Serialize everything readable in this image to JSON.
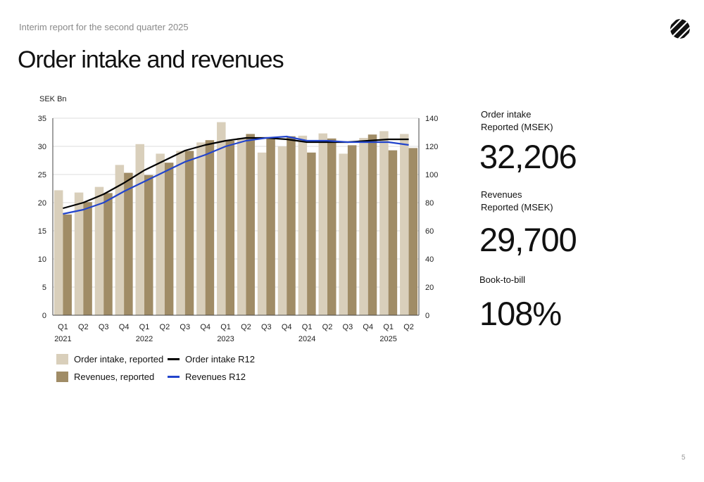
{
  "header": {
    "report_name": "Interim report for the second quarter 2025",
    "title": "Order intake and revenues"
  },
  "colors": {
    "order_intake_bar": "#d9cfbb",
    "revenues_bar": "#a08c66",
    "order_intake_r12": "#000000",
    "revenues_r12": "#2244cc"
  },
  "chart_data": {
    "type": "bar",
    "unit_label": "SEK Bn",
    "categories": [
      "Q1",
      "Q2",
      "Q3",
      "Q4",
      "Q1",
      "Q2",
      "Q3",
      "Q4",
      "Q1",
      "Q2",
      "Q3",
      "Q4",
      "Q1",
      "Q2",
      "Q3",
      "Q4",
      "Q1",
      "Q2"
    ],
    "year_labels": [
      {
        "index": 0,
        "label": "2021"
      },
      {
        "index": 4,
        "label": "2022"
      },
      {
        "index": 8,
        "label": "2023"
      },
      {
        "index": 12,
        "label": "2024"
      },
      {
        "index": 16,
        "label": "2025"
      }
    ],
    "y_left": {
      "min": 0,
      "max": 35,
      "ticks": [
        0,
        5,
        10,
        15,
        20,
        25,
        30,
        35
      ]
    },
    "y_right": {
      "min": 0,
      "max": 140,
      "ticks": [
        0,
        20,
        40,
        60,
        80,
        100,
        120,
        140
      ]
    },
    "grid": true,
    "legend_position": "bottom-left",
    "series": [
      {
        "name": "Order intake, reported",
        "kind": "bar",
        "axis": "left",
        "values": [
          22.2,
          21.8,
          22.8,
          26.7,
          30.4,
          28.7,
          29.2,
          30.7,
          34.3,
          31.5,
          28.9,
          30.0,
          31.9,
          32.3,
          28.7,
          31.5,
          32.7,
          32.2
        ]
      },
      {
        "name": "Revenues, reported",
        "kind": "bar",
        "axis": "left",
        "values": [
          17.9,
          20.1,
          21.7,
          25.3,
          24.9,
          27.1,
          29.2,
          31.1,
          31.0,
          32.2,
          31.6,
          31.8,
          28.9,
          31.4,
          30.2,
          32.1,
          29.3,
          29.7
        ]
      },
      {
        "name": "Order intake R12",
        "kind": "line",
        "axis": "right",
        "values": [
          76,
          80,
          86,
          94,
          103,
          110,
          117,
          121,
          124,
          126,
          126,
          125,
          123,
          123,
          123,
          124,
          125,
          125
        ]
      },
      {
        "name": "Revenues R12",
        "kind": "line",
        "axis": "right",
        "values": [
          72,
          75,
          80,
          88,
          95,
          102,
          109,
          114,
          120,
          124,
          126,
          127,
          124,
          124,
          123,
          123,
          123,
          121
        ]
      }
    ]
  },
  "kpis": {
    "order_intake_label_1": "Order intake",
    "order_intake_label_2": "Reported (MSEK)",
    "order_intake_value": "32,206",
    "revenues_label_1": "Revenues",
    "revenues_label_2": "Reported (MSEK)",
    "revenues_value": "29,700",
    "btb_label": "Book-to-bill",
    "btb_value": "108%"
  },
  "page_number": "5"
}
